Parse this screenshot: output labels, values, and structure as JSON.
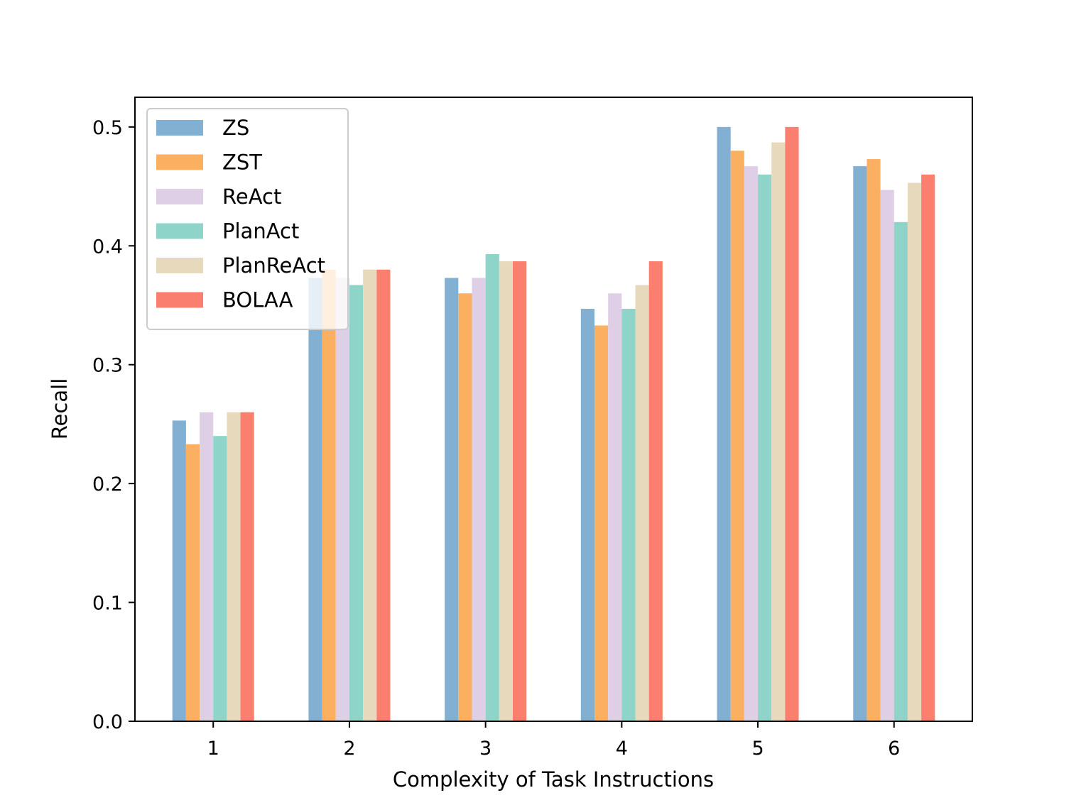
{
  "chart_data": {
    "type": "bar",
    "title": "",
    "xlabel": "Complexity of Task Instructions",
    "ylabel": "Recall",
    "categories": [
      "1",
      "2",
      "3",
      "4",
      "5",
      "6"
    ],
    "ylim": [
      0,
      0.525
    ],
    "yticks": [
      0.0,
      0.1,
      0.2,
      0.3,
      0.4,
      0.5
    ],
    "ytick_labels": [
      "0.0",
      "0.1",
      "0.2",
      "0.3",
      "0.4",
      "0.5"
    ],
    "grid": false,
    "legend_position": "top-left",
    "series": [
      {
        "name": "ZS",
        "color": "#82b0d2",
        "values": [
          0.253,
          0.373,
          0.373,
          0.347,
          0.5,
          0.467
        ]
      },
      {
        "name": "ZST",
        "color": "#fbb061",
        "values": [
          0.233,
          0.38,
          0.36,
          0.333,
          0.48,
          0.473
        ]
      },
      {
        "name": "ReAct",
        "color": "#decfe6",
        "values": [
          0.26,
          0.373,
          0.373,
          0.36,
          0.467,
          0.447
        ]
      },
      {
        "name": "PlanAct",
        "color": "#8fd4c8",
        "values": [
          0.24,
          0.367,
          0.393,
          0.347,
          0.46,
          0.42
        ]
      },
      {
        "name": "PlanReAct",
        "color": "#e7dabc",
        "values": [
          0.26,
          0.38,
          0.387,
          0.367,
          0.487,
          0.453
        ]
      },
      {
        "name": "BOLAA",
        "color": "#fa7f6f",
        "values": [
          0.26,
          0.38,
          0.387,
          0.387,
          0.5,
          0.46
        ]
      }
    ]
  }
}
